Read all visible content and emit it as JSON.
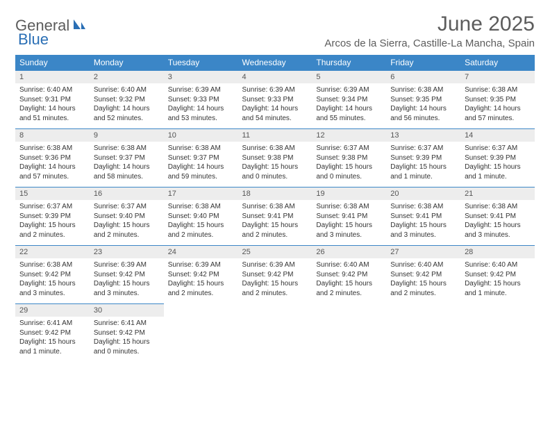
{
  "logo": {
    "word1": "General",
    "word2": "Blue"
  },
  "title": "June 2025",
  "location": "Arcos de la Sierra, Castille-La Mancha, Spain",
  "colors": {
    "header_bg": "#3b86c7",
    "header_text": "#ffffff",
    "daynum_bg": "#ededed",
    "daynum_text": "#555555",
    "body_text": "#333333",
    "logo_gray": "#5c5c5c",
    "logo_blue": "#2a6fb5",
    "border": "#3b86c7"
  },
  "weekdays": [
    "Sunday",
    "Monday",
    "Tuesday",
    "Wednesday",
    "Thursday",
    "Friday",
    "Saturday"
  ],
  "weeks": [
    [
      {
        "n": "1",
        "sunrise": "Sunrise: 6:40 AM",
        "sunset": "Sunset: 9:31 PM",
        "daylight": "Daylight: 14 hours and 51 minutes."
      },
      {
        "n": "2",
        "sunrise": "Sunrise: 6:40 AM",
        "sunset": "Sunset: 9:32 PM",
        "daylight": "Daylight: 14 hours and 52 minutes."
      },
      {
        "n": "3",
        "sunrise": "Sunrise: 6:39 AM",
        "sunset": "Sunset: 9:33 PM",
        "daylight": "Daylight: 14 hours and 53 minutes."
      },
      {
        "n": "4",
        "sunrise": "Sunrise: 6:39 AM",
        "sunset": "Sunset: 9:33 PM",
        "daylight": "Daylight: 14 hours and 54 minutes."
      },
      {
        "n": "5",
        "sunrise": "Sunrise: 6:39 AM",
        "sunset": "Sunset: 9:34 PM",
        "daylight": "Daylight: 14 hours and 55 minutes."
      },
      {
        "n": "6",
        "sunrise": "Sunrise: 6:38 AM",
        "sunset": "Sunset: 9:35 PM",
        "daylight": "Daylight: 14 hours and 56 minutes."
      },
      {
        "n": "7",
        "sunrise": "Sunrise: 6:38 AM",
        "sunset": "Sunset: 9:35 PM",
        "daylight": "Daylight: 14 hours and 57 minutes."
      }
    ],
    [
      {
        "n": "8",
        "sunrise": "Sunrise: 6:38 AM",
        "sunset": "Sunset: 9:36 PM",
        "daylight": "Daylight: 14 hours and 57 minutes."
      },
      {
        "n": "9",
        "sunrise": "Sunrise: 6:38 AM",
        "sunset": "Sunset: 9:37 PM",
        "daylight": "Daylight: 14 hours and 58 minutes."
      },
      {
        "n": "10",
        "sunrise": "Sunrise: 6:38 AM",
        "sunset": "Sunset: 9:37 PM",
        "daylight": "Daylight: 14 hours and 59 minutes."
      },
      {
        "n": "11",
        "sunrise": "Sunrise: 6:38 AM",
        "sunset": "Sunset: 9:38 PM",
        "daylight": "Daylight: 15 hours and 0 minutes."
      },
      {
        "n": "12",
        "sunrise": "Sunrise: 6:37 AM",
        "sunset": "Sunset: 9:38 PM",
        "daylight": "Daylight: 15 hours and 0 minutes."
      },
      {
        "n": "13",
        "sunrise": "Sunrise: 6:37 AM",
        "sunset": "Sunset: 9:39 PM",
        "daylight": "Daylight: 15 hours and 1 minute."
      },
      {
        "n": "14",
        "sunrise": "Sunrise: 6:37 AM",
        "sunset": "Sunset: 9:39 PM",
        "daylight": "Daylight: 15 hours and 1 minute."
      }
    ],
    [
      {
        "n": "15",
        "sunrise": "Sunrise: 6:37 AM",
        "sunset": "Sunset: 9:39 PM",
        "daylight": "Daylight: 15 hours and 2 minutes."
      },
      {
        "n": "16",
        "sunrise": "Sunrise: 6:37 AM",
        "sunset": "Sunset: 9:40 PM",
        "daylight": "Daylight: 15 hours and 2 minutes."
      },
      {
        "n": "17",
        "sunrise": "Sunrise: 6:38 AM",
        "sunset": "Sunset: 9:40 PM",
        "daylight": "Daylight: 15 hours and 2 minutes."
      },
      {
        "n": "18",
        "sunrise": "Sunrise: 6:38 AM",
        "sunset": "Sunset: 9:41 PM",
        "daylight": "Daylight: 15 hours and 2 minutes."
      },
      {
        "n": "19",
        "sunrise": "Sunrise: 6:38 AM",
        "sunset": "Sunset: 9:41 PM",
        "daylight": "Daylight: 15 hours and 3 minutes."
      },
      {
        "n": "20",
        "sunrise": "Sunrise: 6:38 AM",
        "sunset": "Sunset: 9:41 PM",
        "daylight": "Daylight: 15 hours and 3 minutes."
      },
      {
        "n": "21",
        "sunrise": "Sunrise: 6:38 AM",
        "sunset": "Sunset: 9:41 PM",
        "daylight": "Daylight: 15 hours and 3 minutes."
      }
    ],
    [
      {
        "n": "22",
        "sunrise": "Sunrise: 6:38 AM",
        "sunset": "Sunset: 9:42 PM",
        "daylight": "Daylight: 15 hours and 3 minutes."
      },
      {
        "n": "23",
        "sunrise": "Sunrise: 6:39 AM",
        "sunset": "Sunset: 9:42 PM",
        "daylight": "Daylight: 15 hours and 3 minutes."
      },
      {
        "n": "24",
        "sunrise": "Sunrise: 6:39 AM",
        "sunset": "Sunset: 9:42 PM",
        "daylight": "Daylight: 15 hours and 2 minutes."
      },
      {
        "n": "25",
        "sunrise": "Sunrise: 6:39 AM",
        "sunset": "Sunset: 9:42 PM",
        "daylight": "Daylight: 15 hours and 2 minutes."
      },
      {
        "n": "26",
        "sunrise": "Sunrise: 6:40 AM",
        "sunset": "Sunset: 9:42 PM",
        "daylight": "Daylight: 15 hours and 2 minutes."
      },
      {
        "n": "27",
        "sunrise": "Sunrise: 6:40 AM",
        "sunset": "Sunset: 9:42 PM",
        "daylight": "Daylight: 15 hours and 2 minutes."
      },
      {
        "n": "28",
        "sunrise": "Sunrise: 6:40 AM",
        "sunset": "Sunset: 9:42 PM",
        "daylight": "Daylight: 15 hours and 1 minute."
      }
    ],
    [
      {
        "n": "29",
        "sunrise": "Sunrise: 6:41 AM",
        "sunset": "Sunset: 9:42 PM",
        "daylight": "Daylight: 15 hours and 1 minute."
      },
      {
        "n": "30",
        "sunrise": "Sunrise: 6:41 AM",
        "sunset": "Sunset: 9:42 PM",
        "daylight": "Daylight: 15 hours and 0 minutes."
      },
      null,
      null,
      null,
      null,
      null
    ]
  ]
}
